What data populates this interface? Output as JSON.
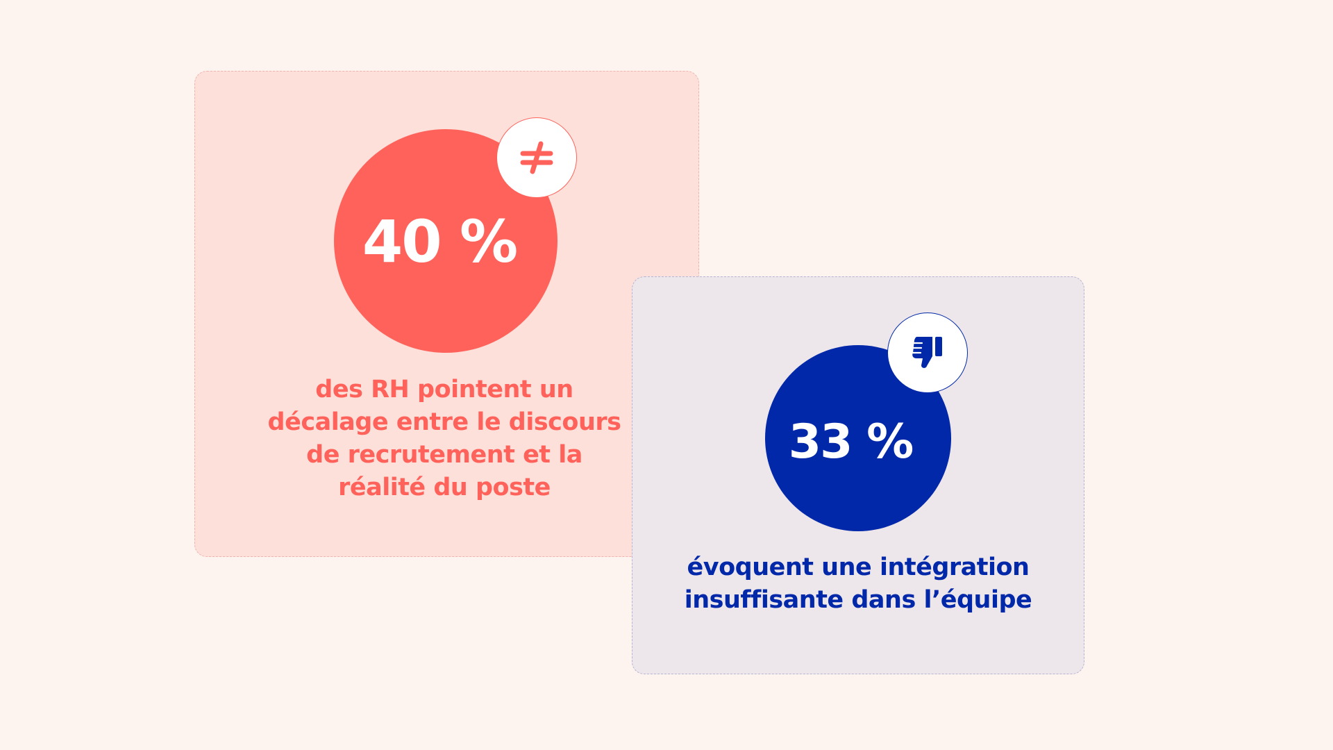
{
  "colors": {
    "background": "#fdf4ef",
    "red_accent": "#ff625a",
    "red_card": "#fde0da",
    "blue_accent": "#0028a8",
    "blue_card": "#ede6ea"
  },
  "stats": [
    {
      "value": "40 %",
      "icon": "not-equal-icon",
      "caption_lines": [
        "des RH pointent un",
        "décalage entre le discours",
        "de recrutement et la",
        "réalité du poste"
      ]
    },
    {
      "value": "33 %",
      "icon": "thumbs-down-icon",
      "caption_lines": [
        "évoquent une intégration",
        "insuffisante dans l’équipe"
      ]
    }
  ]
}
